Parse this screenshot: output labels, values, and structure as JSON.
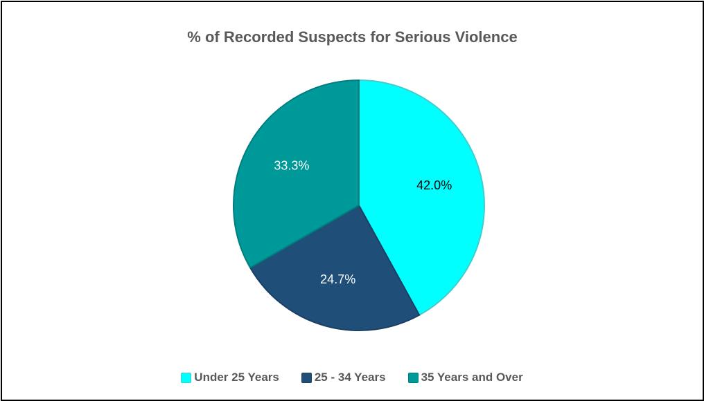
{
  "chart_data": {
    "type": "pie",
    "title": "% of Recorded Suspects for Serious Violence",
    "categories": [
      "Under 25 Years",
      "25 - 34 Years",
      "35 Years and Over"
    ],
    "values": [
      42.0,
      24.7,
      33.3
    ],
    "data_labels": [
      "42.0%",
      "24.7%",
      "33.3%"
    ],
    "colors": [
      "#00FFFF",
      "#1F4E79",
      "#009999"
    ],
    "label_colors": [
      "#000000",
      "#ffffff",
      "#ffffff"
    ],
    "border_colors": [
      "#44CCCC",
      "#1a3f63",
      "#007e7e"
    ],
    "legend_position": "bottom"
  }
}
